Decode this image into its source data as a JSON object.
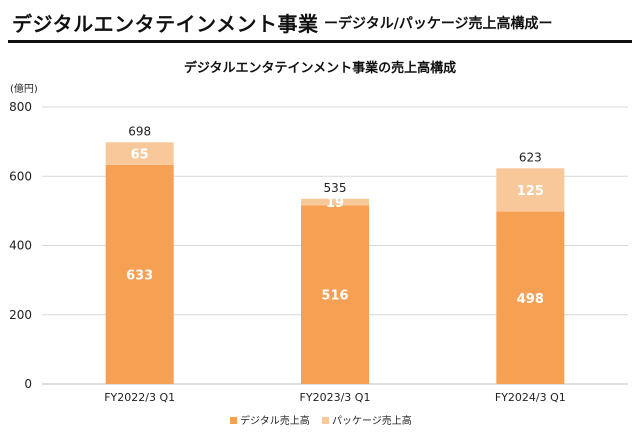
{
  "header": {
    "title": "デジタルエンタテインメント事業",
    "subtitle": "ーデジタル/パッケージ売上高構成ー"
  },
  "chart_data": {
    "type": "bar",
    "stacked": true,
    "title": "デジタルエンタテインメント事業の売上高構成",
    "unit_label": "(億円)",
    "categories": [
      "FY2022/3 Q1",
      "FY2023/3 Q1",
      "FY2024/3 Q1"
    ],
    "series": [
      {
        "name": "デジタル売上高",
        "values": [
          633,
          516,
          498
        ],
        "color": "#f5a052"
      },
      {
        "name": "パッケージ売上高",
        "values": [
          65,
          19,
          125
        ],
        "color": "#f9c89a"
      }
    ],
    "totals": [
      698,
      535,
      623
    ],
    "ylim": [
      0,
      800
    ],
    "yticks": [
      0,
      200,
      400,
      600,
      800
    ],
    "grid": true,
    "legend": "bottom-center"
  }
}
